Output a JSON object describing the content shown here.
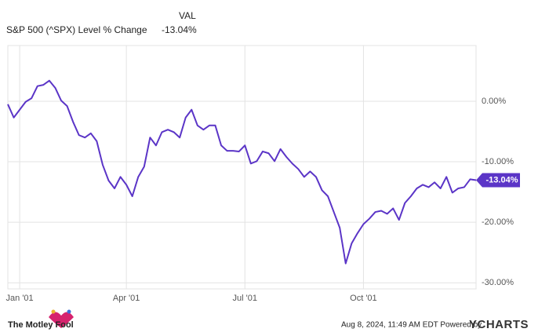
{
  "chart_data": {
    "type": "line",
    "value_header": "VAL",
    "categories": [
      null,
      null,
      "Jan '01",
      null,
      null,
      null,
      null,
      null,
      null,
      null,
      null,
      null,
      null,
      null,
      null,
      null,
      null,
      null,
      null,
      null,
      "Apr '01",
      null,
      null,
      null,
      null,
      null,
      null,
      null,
      null,
      null,
      null,
      null,
      null,
      null,
      null,
      null,
      null,
      null,
      null,
      null,
      "Jul '01",
      null,
      null,
      null,
      null,
      null,
      null,
      null,
      null,
      null,
      null,
      null,
      null,
      null,
      null,
      null,
      null,
      null,
      null,
      null,
      "Oct '01",
      null,
      null,
      null,
      null,
      null,
      null,
      null,
      null,
      null,
      null,
      null,
      null,
      null,
      null,
      null,
      null,
      null,
      null,
      null
    ],
    "series": [
      {
        "name": "S&P 500 (^SPX) Level % Change",
        "color": "#5b35c7",
        "end_label": "-13.04%",
        "values": [
          -0.5,
          -2.7,
          -1.4,
          -0.1,
          0.5,
          2.5,
          2.7,
          3.4,
          2.2,
          0.1,
          -0.8,
          -3.4,
          -5.6,
          -6.0,
          -5.3,
          -6.6,
          -10.5,
          -13.1,
          -14.4,
          -12.5,
          -13.8,
          -15.7,
          -12.5,
          -10.8,
          -6.0,
          -7.3,
          -5.1,
          -4.7,
          -5.1,
          -6.0,
          -2.7,
          -1.4,
          -4.0,
          -4.7,
          -4.0,
          -4.0,
          -7.3,
          -8.2,
          -8.2,
          -8.3,
          -7.3,
          -10.3,
          -9.9,
          -8.3,
          -8.6,
          -9.9,
          -7.9,
          -9.2,
          -10.3,
          -11.2,
          -12.5,
          -11.6,
          -12.5,
          -14.7,
          -15.7,
          -18.3,
          -20.9,
          -26.8,
          -23.5,
          -21.8,
          -20.3,
          -19.4,
          -18.3,
          -18.1,
          -18.6,
          -17.7,
          -19.6,
          -16.8,
          -15.7,
          -14.4,
          -13.8,
          -14.2,
          -13.4,
          -14.4,
          -12.5,
          -15.1,
          -14.4,
          -14.2,
          -12.9,
          -13.04
        ]
      }
    ],
    "ylim": [
      -31,
      9.2
    ],
    "yticks": [
      {
        "value": 0,
        "label": "0.00%"
      },
      {
        "value": -10,
        "label": "-10.00%"
      },
      {
        "value": -20,
        "label": "-20.00%"
      },
      {
        "value": -30,
        "label": "-30.00%"
      }
    ],
    "grid": true
  },
  "footer": {
    "brand": "The Motley Fool",
    "timestamp": "Aug 8, 2024, 11:49 AM EDT Powered by",
    "provider": "YCHARTS"
  }
}
